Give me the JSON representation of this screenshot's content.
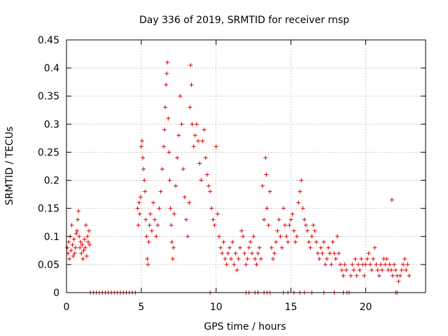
{
  "chart_data": {
    "type": "scatter",
    "title": "Day 336 of 2019, SRMTID for receiver rnsp",
    "xlabel": "GPS time / hours",
    "ylabel": "SRMTID / TECUs",
    "xlim": [
      0,
      24
    ],
    "ylim": [
      0,
      0.45
    ],
    "xticks": [
      0,
      5,
      10,
      15,
      20
    ],
    "xtick_labels": [
      "0",
      "5",
      "10",
      "15",
      "20"
    ],
    "yticks": [
      0,
      0.05,
      0.1,
      0.15,
      0.2,
      0.25,
      0.3,
      0.35,
      0.4,
      0.45
    ],
    "ytick_labels": [
      "0",
      "0.05",
      "0.1",
      "0.15",
      "0.2",
      "0.25",
      "0.3",
      "0.35",
      "0.4",
      "0.45"
    ],
    "grid": true,
    "marker": "+",
    "color": "#e00000",
    "series": [
      {
        "name": "SRMTID",
        "points": [
          [
            0.05,
            0.08
          ],
          [
            0.1,
            0.07
          ],
          [
            0.15,
            0.09
          ],
          [
            0.2,
            0.06
          ],
          [
            0.25,
            0.1
          ],
          [
            0.3,
            0.075
          ],
          [
            0.35,
            0.12
          ],
          [
            0.4,
            0.085
          ],
          [
            0.45,
            0.065
          ],
          [
            0.5,
            0.095
          ],
          [
            0.55,
            0.07
          ],
          [
            0.6,
            0.08
          ],
          [
            0.65,
            0.105
          ],
          [
            0.7,
            0.11
          ],
          [
            0.75,
            0.13
          ],
          [
            0.8,
            0.145
          ],
          [
            0.85,
            0.1
          ],
          [
            0.9,
            0.08
          ],
          [
            0.95,
            0.09
          ],
          [
            1.0,
            0.07
          ],
          [
            1.05,
            0.085
          ],
          [
            1.1,
            0.06
          ],
          [
            1.15,
            0.075
          ],
          [
            1.2,
            0.095
          ],
          [
            1.25,
            0.08
          ],
          [
            1.3,
            0.12
          ],
          [
            1.35,
            0.065
          ],
          [
            1.4,
            0.1
          ],
          [
            1.45,
            0.09
          ],
          [
            1.5,
            0.11
          ],
          [
            1.55,
            0.085
          ],
          [
            1.6,
            0
          ],
          [
            1.8,
            0
          ],
          [
            2.0,
            0
          ],
          [
            2.2,
            0
          ],
          [
            2.4,
            0
          ],
          [
            2.6,
            0
          ],
          [
            2.8,
            0
          ],
          [
            3.0,
            0
          ],
          [
            3.2,
            0
          ],
          [
            3.4,
            0
          ],
          [
            3.6,
            0
          ],
          [
            3.8,
            0
          ],
          [
            4.0,
            0
          ],
          [
            4.2,
            0
          ],
          [
            4.4,
            0
          ],
          [
            4.6,
            0
          ],
          [
            4.75,
            0.15
          ],
          [
            4.8,
            0.12
          ],
          [
            4.85,
            0.16
          ],
          [
            4.9,
            0.14
          ],
          [
            4.95,
            0.17
          ],
          [
            5.0,
            0.26
          ],
          [
            5.05,
            0.27
          ],
          [
            5.1,
            0.24
          ],
          [
            5.15,
            0.22
          ],
          [
            5.2,
            0.2
          ],
          [
            5.25,
            0.18
          ],
          [
            5.3,
            0.13
          ],
          [
            5.35,
            0.1
          ],
          [
            5.4,
            0.06
          ],
          [
            5.45,
            0.05
          ],
          [
            5.5,
            0.09
          ],
          [
            5.55,
            0.12
          ],
          [
            5.6,
            0.14
          ],
          [
            5.7,
            0.11
          ],
          [
            5.8,
            0.16
          ],
          [
            5.9,
            0.13
          ],
          [
            6.0,
            0.1
          ],
          [
            6.1,
            0.12
          ],
          [
            6.2,
            0.15
          ],
          [
            6.3,
            0.18
          ],
          [
            6.4,
            0.22
          ],
          [
            6.5,
            0.26
          ],
          [
            6.55,
            0.29
          ],
          [
            6.6,
            0.33
          ],
          [
            6.65,
            0.37
          ],
          [
            6.7,
            0.39
          ],
          [
            6.75,
            0.41
          ],
          [
            6.8,
            0.31
          ],
          [
            6.85,
            0.25
          ],
          [
            6.9,
            0.2
          ],
          [
            6.95,
            0.15
          ],
          [
            7.0,
            0.12
          ],
          [
            7.05,
            0.09
          ],
          [
            7.1,
            0.06
          ],
          [
            7.15,
            0.08
          ],
          [
            7.2,
            0.14
          ],
          [
            7.3,
            0.19
          ],
          [
            7.4,
            0.24
          ],
          [
            7.5,
            0.28
          ],
          [
            7.6,
            0.35
          ],
          [
            7.7,
            0.3
          ],
          [
            7.8,
            0.22
          ],
          [
            7.9,
            0.17
          ],
          [
            8.0,
            0.13
          ],
          [
            8.1,
            0.1
          ],
          [
            8.2,
            0.16
          ],
          [
            8.25,
            0.33
          ],
          [
            8.3,
            0.405
          ],
          [
            8.35,
            0.37
          ],
          [
            8.4,
            0.3
          ],
          [
            8.5,
            0.26
          ],
          [
            8.6,
            0.28
          ],
          [
            8.7,
            0.3
          ],
          [
            8.8,
            0.27
          ],
          [
            8.9,
            0.23
          ],
          [
            9.0,
            0.2
          ],
          [
            9.1,
            0.27
          ],
          [
            9.2,
            0.29
          ],
          [
            9.3,
            0.24
          ],
          [
            9.4,
            0.21
          ],
          [
            9.5,
            0.19
          ],
          [
            9.6,
            0.18
          ],
          [
            9.7,
            0.15
          ],
          [
            9.8,
            0.13
          ],
          [
            9.9,
            0.12
          ],
          [
            10.0,
            0.26
          ],
          [
            10.1,
            0.14
          ],
          [
            10.2,
            0.1
          ],
          [
            10.3,
            0.08
          ],
          [
            10.4,
            0.07
          ],
          [
            10.5,
            0.09
          ],
          [
            10.6,
            0.06
          ],
          [
            10.7,
            0.05
          ],
          [
            10.8,
            0.07
          ],
          [
            10.9,
            0.08
          ],
          [
            11.0,
            0.06
          ],
          [
            11.1,
            0.09
          ],
          [
            11.2,
            0.05
          ],
          [
            11.3,
            0.07
          ],
          [
            11.4,
            0.04
          ],
          [
            11.5,
            0.06
          ],
          [
            11.6,
            0.08
          ],
          [
            11.7,
            0.11
          ],
          [
            11.8,
            0.1
          ],
          [
            11.9,
            0.07
          ],
          [
            12.0,
            0.05
          ],
          [
            12.1,
            0.06
          ],
          [
            12.2,
            0.08
          ],
          [
            12.3,
            0.09
          ],
          [
            12.4,
            0.07
          ],
          [
            12.5,
            0.1
          ],
          [
            12.6,
            0.06
          ],
          [
            12.7,
            0.05
          ],
          [
            12.8,
            0.07
          ],
          [
            12.9,
            0.08
          ],
          [
            13.0,
            0.06
          ],
          [
            13.1,
            0.19
          ],
          [
            13.2,
            0.13
          ],
          [
            13.3,
            0.24
          ],
          [
            13.35,
            0.21
          ],
          [
            13.4,
            0.15
          ],
          [
            13.5,
            0.12
          ],
          [
            13.6,
            0.18
          ],
          [
            13.7,
            0.08
          ],
          [
            13.8,
            0.06
          ],
          [
            13.9,
            0.07
          ],
          [
            14.0,
            0.09
          ],
          [
            14.1,
            0.11
          ],
          [
            14.2,
            0.13
          ],
          [
            14.3,
            0.1
          ],
          [
            14.4,
            0.08
          ],
          [
            14.5,
            0.15
          ],
          [
            14.6,
            0.12
          ],
          [
            14.7,
            0.1
          ],
          [
            14.8,
            0.09
          ],
          [
            14.9,
            0.12
          ],
          [
            15.0,
            0.13
          ],
          [
            15.1,
            0.14
          ],
          [
            15.2,
            0.11
          ],
          [
            15.3,
            0.09
          ],
          [
            15.4,
            0.1
          ],
          [
            15.5,
            0.16
          ],
          [
            15.6,
            0.18
          ],
          [
            15.7,
            0.2
          ],
          [
            15.8,
            0.15
          ],
          [
            15.9,
            0.13
          ],
          [
            16.0,
            0.12
          ],
          [
            16.1,
            0.11
          ],
          [
            16.2,
            0.09
          ],
          [
            16.3,
            0.08
          ],
          [
            16.4,
            0.1
          ],
          [
            16.5,
            0.12
          ],
          [
            16.6,
            0.11
          ],
          [
            16.7,
            0.09
          ],
          [
            16.8,
            0.07
          ],
          [
            16.9,
            0.06
          ],
          [
            17.0,
            0.08
          ],
          [
            17.1,
            0.07
          ],
          [
            17.2,
            0.09
          ],
          [
            17.3,
            0.05
          ],
          [
            17.4,
            0.06
          ],
          [
            17.5,
            0.08
          ],
          [
            17.6,
            0.07
          ],
          [
            17.7,
            0.05
          ],
          [
            17.8,
            0.09
          ],
          [
            17.9,
            0.07
          ],
          [
            18.0,
            0.06
          ],
          [
            18.1,
            0.1
          ],
          [
            18.2,
            0.07
          ],
          [
            18.3,
            0.05
          ],
          [
            18.4,
            0.04
          ],
          [
            18.5,
            0.03
          ],
          [
            18.6,
            0.05
          ],
          [
            18.7,
            0.04
          ],
          [
            18.75,
            0
          ],
          [
            18.9,
            0
          ],
          [
            19.0,
            0.03
          ],
          [
            19.1,
            0.05
          ],
          [
            19.2,
            0.04
          ],
          [
            19.3,
            0.06
          ],
          [
            19.4,
            0.03
          ],
          [
            19.5,
            0.05
          ],
          [
            19.6,
            0.04
          ],
          [
            19.7,
            0.06
          ],
          [
            19.8,
            0.05
          ],
          [
            19.9,
            0.03
          ],
          [
            20.0,
            0.05
          ],
          [
            20.1,
            0.06
          ],
          [
            20.2,
            0.07
          ],
          [
            20.3,
            0.05
          ],
          [
            20.4,
            0.04
          ],
          [
            20.5,
            0.06
          ],
          [
            20.6,
            0.08
          ],
          [
            20.7,
            0.05
          ],
          [
            20.8,
            0.04
          ],
          [
            20.9,
            0.03
          ],
          [
            21.0,
            0.05
          ],
          [
            21.1,
            0.04
          ],
          [
            21.2,
            0.06
          ],
          [
            21.3,
            0.05
          ],
          [
            21.4,
            0.06
          ],
          [
            21.5,
            0.04
          ],
          [
            21.6,
            0.05
          ],
          [
            21.7,
            0.04
          ],
          [
            21.75,
            0.165
          ],
          [
            21.8,
            0.03
          ],
          [
            21.9,
            0.05
          ],
          [
            22.0,
            0.04
          ],
          [
            22.1,
            0.03
          ],
          [
            22.2,
            0.02
          ],
          [
            22.3,
            0.03
          ],
          [
            22.4,
            0.04
          ],
          [
            22.5,
            0.05
          ],
          [
            22.6,
            0.06
          ],
          [
            22.7,
            0.04
          ],
          [
            22.8,
            0.05
          ],
          [
            22.9,
            0.03
          ],
          [
            12.0,
            0
          ],
          [
            12.2,
            0
          ],
          [
            12.6,
            0
          ],
          [
            12.8,
            0
          ],
          [
            13.2,
            0
          ],
          [
            13.4,
            0
          ],
          [
            13.6,
            0
          ],
          [
            14.5,
            0
          ],
          [
            14.8,
            0
          ],
          [
            15.2,
            0
          ],
          [
            15.6,
            0
          ],
          [
            15.9,
            0
          ],
          [
            16.4,
            0
          ],
          [
            17.2,
            0
          ],
          [
            17.9,
            0
          ],
          [
            18.5,
            0
          ],
          [
            22.0,
            0
          ],
          [
            22.1,
            0
          ],
          [
            9.6,
            0
          ]
        ]
      }
    ]
  }
}
